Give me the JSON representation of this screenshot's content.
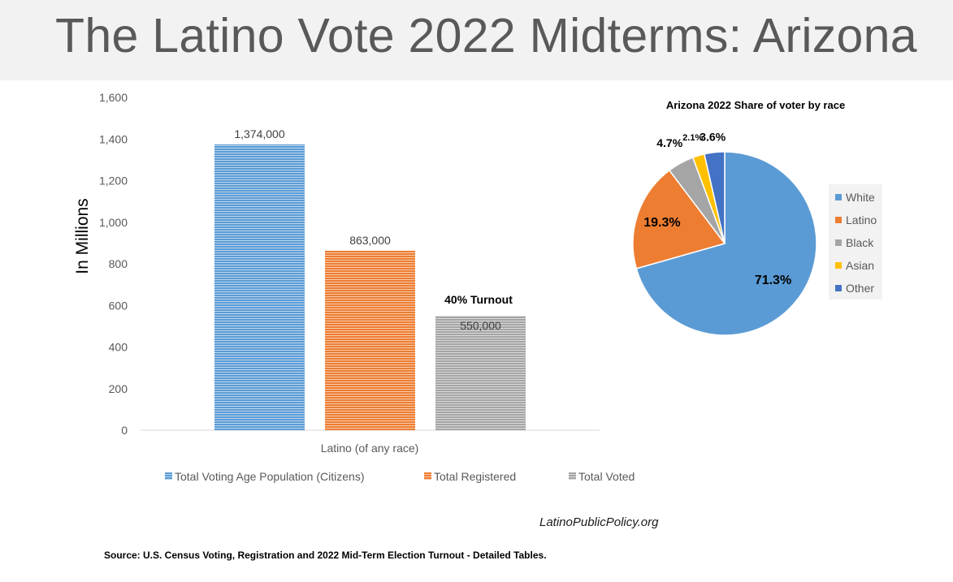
{
  "page": {
    "title": "The Latino Vote 2022 Midterms: Arizona",
    "website": "LatinoPublicPolicy.org",
    "source": "Source: U.S. Census Voting, Registration and 2022 Mid-Term Election Turnout - Detailed Tables."
  },
  "chart_data": [
    {
      "type": "bar",
      "ylabel": "In Millions",
      "xlabel": "",
      "category_label": "Latino (of any race)",
      "ylim": [
        0,
        1600
      ],
      "y_ticks": [
        "1,600",
        "1,400",
        "1,200",
        "1,000",
        "800",
        "600",
        "400",
        "200",
        "0"
      ],
      "annotation": "40% Turnout",
      "legend_position": "bottom",
      "series": [
        {
          "name": "Total Voting Age Population (Citizens)",
          "value": 1374000,
          "label": "1,374,000",
          "color": "#5b9bd5"
        },
        {
          "name": "Total Registered",
          "value": 863000,
          "label": "863,000",
          "color": "#ed7d31"
        },
        {
          "name": "Total Voted",
          "value": 550000,
          "label": "550,000",
          "color": "#a5a5a5"
        }
      ]
    },
    {
      "type": "pie",
      "title": "Arizona 2022 Share of voter by race",
      "legend_position": "right",
      "slices": [
        {
          "name": "White",
          "value": 71.3,
          "label": "71.3%",
          "color": "#5b9bd5"
        },
        {
          "name": "Latino",
          "value": 19.3,
          "label": "19.3%",
          "color": "#ed7d31"
        },
        {
          "name": "Black",
          "value": 4.7,
          "label": "4.7%",
          "color": "#a5a5a5"
        },
        {
          "name": "Asian",
          "value": 2.1,
          "label": "2.1%",
          "color": "#ffc000"
        },
        {
          "name": "Other",
          "value": 3.6,
          "label": "3.6%",
          "color": "#4472c4"
        }
      ]
    }
  ]
}
